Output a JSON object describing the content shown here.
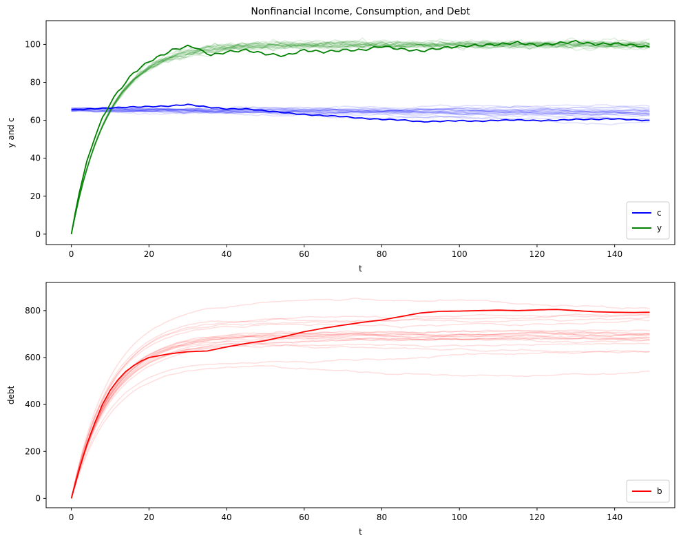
{
  "chart_data": [
    {
      "type": "line",
      "title": "Nonfinancial Income, Consumption, and Debt",
      "xlabel": "t",
      "ylabel": "y and c",
      "xlim": [
        -6.5,
        155.5
      ],
      "ylim": [
        -5.5,
        112.5
      ],
      "xticks": [
        0,
        20,
        40,
        60,
        80,
        100,
        120,
        140
      ],
      "yticks": [
        0,
        20,
        40,
        60,
        80,
        100
      ],
      "grid": false,
      "legend_position": "bottom-right",
      "series": [
        {
          "name": "c",
          "color": "#0000ff",
          "x": [
            0,
            5,
            10,
            15,
            20,
            25,
            30,
            35,
            40,
            45,
            50,
            55,
            60,
            65,
            70,
            75,
            80,
            85,
            90,
            95,
            100,
            105,
            110,
            115,
            120,
            125,
            130,
            135,
            140,
            145,
            149
          ],
          "values": [
            65.5,
            66.0,
            66.5,
            67.0,
            67.2,
            67.5,
            68.3,
            67.0,
            66.0,
            66.0,
            65.0,
            64.0,
            63.0,
            62.5,
            62.0,
            61.0,
            60.5,
            60.2,
            59.2,
            59.5,
            59.8,
            59.5,
            60.0,
            60.2,
            59.8,
            60.0,
            60.5,
            60.5,
            60.8,
            60.2,
            59.8
          ]
        },
        {
          "name": "y",
          "color": "#008000",
          "x": [
            0,
            2,
            4,
            6,
            8,
            10,
            12,
            14,
            16,
            18,
            20,
            22,
            24,
            26,
            28,
            30,
            32,
            34,
            36,
            38,
            40,
            45,
            50,
            55,
            60,
            65,
            70,
            75,
            80,
            85,
            90,
            95,
            100,
            105,
            110,
            115,
            120,
            125,
            130,
            135,
            140,
            145,
            149
          ],
          "values": [
            0,
            22,
            38,
            51,
            61,
            69,
            75,
            80,
            85,
            88,
            91,
            93,
            95,
            97,
            98,
            99,
            98.5,
            96,
            94.5,
            95,
            96,
            97,
            95,
            94,
            97,
            96,
            97,
            97,
            99,
            97.5,
            96.5,
            98,
            99,
            99.5,
            100,
            101,
            99.5,
            100.5,
            101.5,
            100,
            100.5,
            99.5,
            98.5
          ]
        }
      ]
    },
    {
      "type": "line",
      "title": "",
      "xlabel": "t",
      "ylabel": "debt",
      "xlim": [
        -6.5,
        155.5
      ],
      "ylim": [
        -40,
        920
      ],
      "xticks": [
        0,
        20,
        40,
        60,
        80,
        100,
        120,
        140
      ],
      "yticks": [
        0,
        200,
        400,
        600,
        800
      ],
      "grid": false,
      "legend_position": "bottom-right",
      "series": [
        {
          "name": "b",
          "color": "#ff0000",
          "x": [
            0,
            2,
            4,
            6,
            8,
            10,
            12,
            14,
            16,
            18,
            20,
            25,
            30,
            35,
            40,
            45,
            50,
            55,
            60,
            65,
            70,
            75,
            80,
            85,
            90,
            95,
            100,
            105,
            110,
            115,
            120,
            125,
            130,
            135,
            140,
            145,
            149
          ],
          "values": [
            0,
            120,
            230,
            320,
            400,
            460,
            505,
            540,
            565,
            585,
            600,
            615,
            625,
            628,
            645,
            660,
            672,
            690,
            710,
            725,
            738,
            750,
            760,
            775,
            790,
            797,
            798,
            800,
            802,
            800,
            803,
            805,
            800,
            795,
            793,
            792,
            793
          ]
        }
      ]
    }
  ],
  "background_series": {
    "count": 20,
    "colors": {
      "c": "#0000ff",
      "y": "#008000",
      "b": "#ff0000"
    },
    "opacity": 0.13
  }
}
